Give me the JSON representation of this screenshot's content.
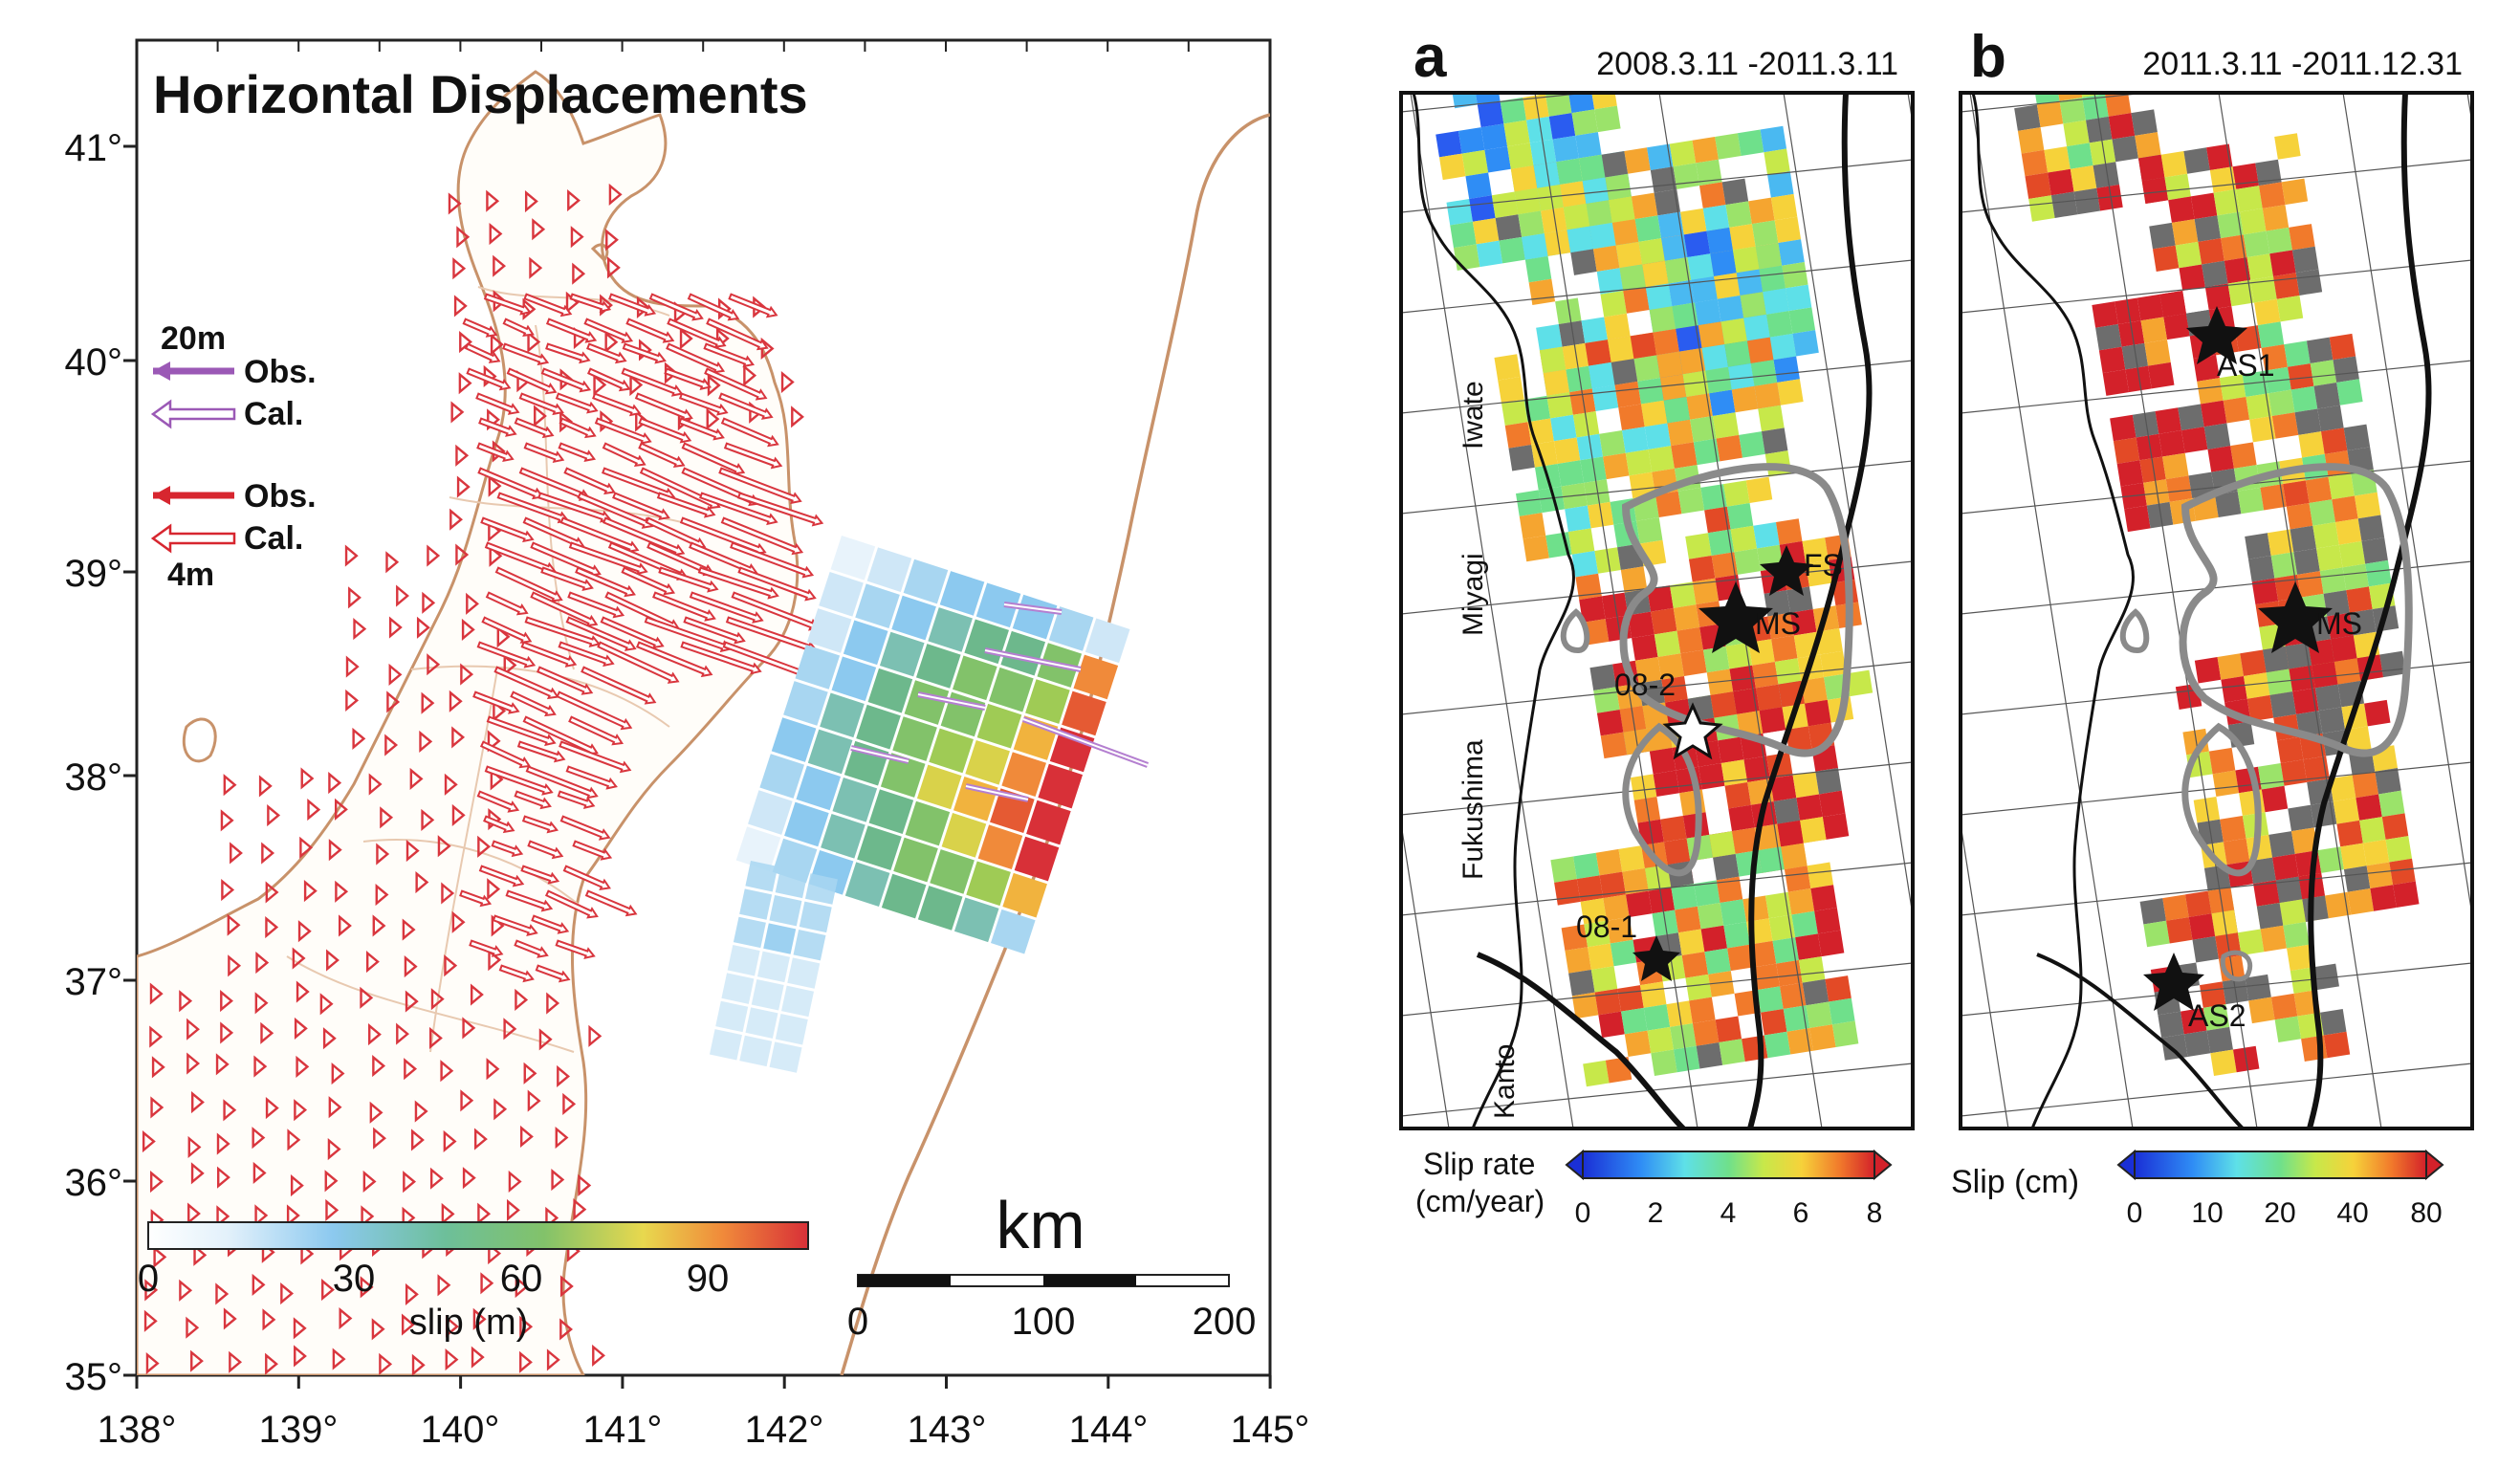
{
  "left_map": {
    "title": "Horizontal Displacements",
    "lon_ticks": [
      "138°",
      "139°",
      "140°",
      "141°",
      "142°",
      "143°",
      "144°",
      "145°"
    ],
    "lat_ticks": [
      "41°",
      "40°",
      "39°",
      "38°",
      "37°",
      "36°",
      "35°"
    ],
    "legend": {
      "gps_scale": "20m",
      "gps_obs": "Obs.",
      "gps_cal": "Cal.",
      "sea_obs": "Obs.",
      "sea_cal": "Cal.",
      "sea_scale": "4m",
      "gps_obs_color": "#9b59b6",
      "sea_obs_color": "#d7262f"
    },
    "colorbar": {
      "ticks": [
        "0",
        "30",
        "60",
        "90"
      ],
      "label": "slip (m)"
    },
    "scalebar": {
      "unit": "km",
      "ticks": [
        "0",
        "100",
        "200"
      ]
    },
    "coast_color": "#c8926a",
    "arrow_color": "#d9363e"
  },
  "panel_a": {
    "letter": "a",
    "period": "2008.3.11 -2011.3.11",
    "regions": [
      "Iwate",
      "Miyagi",
      "Fukushima",
      "Kanto"
    ],
    "events": [
      "FS",
      "MS",
      "08-2",
      "08-1"
    ],
    "colorbar": {
      "label_line1": "Slip rate",
      "label_line2": "(cm/year)",
      "ticks": [
        "0",
        "2",
        "4",
        "6",
        "8"
      ]
    }
  },
  "panel_b": {
    "letter": "b",
    "period": "2011.3.11 -2011.12.31",
    "events": [
      "AS1",
      "MS",
      "AS2"
    ],
    "colorbar": {
      "label": "Slip (cm)",
      "ticks": [
        "0",
        "10",
        "20",
        "40",
        "80"
      ]
    }
  }
}
